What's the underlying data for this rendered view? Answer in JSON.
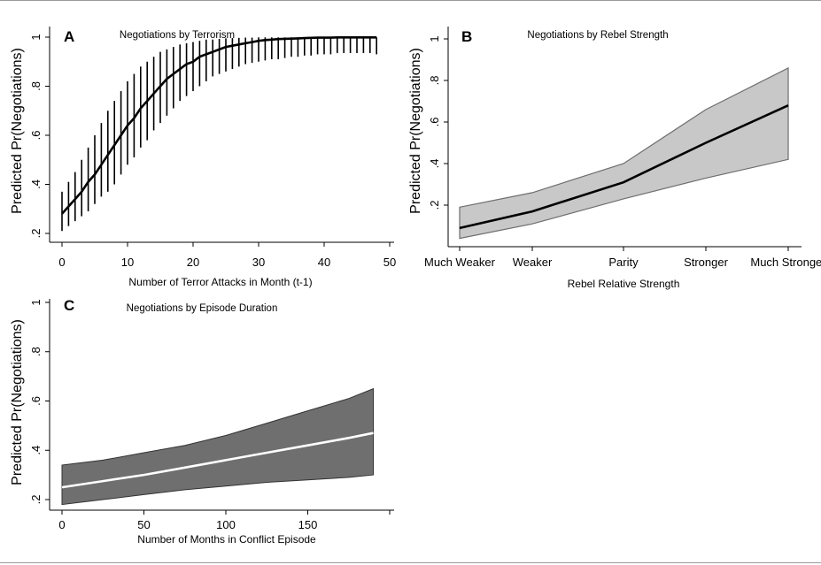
{
  "chart_data": [
    {
      "type": "line",
      "panel_label": "A",
      "title": "Negotiations by Terrorism",
      "xlabel": "Number of Terror Attacks in Month (t-1)",
      "ylabel": "Predicted Pr(Negotiations)",
      "xlim": [
        0,
        50
      ],
      "ylim": [
        0.2,
        1
      ],
      "xticks": [
        0,
        10,
        20,
        30,
        40,
        50
      ],
      "xtick_labels": [
        "0",
        "10",
        "20",
        "30",
        "40",
        "50"
      ],
      "yticks": [
        0.2,
        0.4,
        0.6,
        0.8,
        1
      ],
      "ytick_labels": [
        ".2",
        ".4",
        ".6",
        ".8",
        "1"
      ],
      "interval_style": "capped-bars",
      "colors": {
        "line": "#000000",
        "interval": "#000000"
      },
      "x": [
        0,
        1,
        2,
        3,
        4,
        5,
        6,
        7,
        8,
        9,
        10,
        11,
        12,
        13,
        14,
        15,
        16,
        17,
        18,
        19,
        20,
        21,
        22,
        23,
        24,
        25,
        26,
        27,
        28,
        29,
        30,
        31,
        32,
        33,
        34,
        35,
        36,
        37,
        38,
        39,
        40,
        41,
        42,
        43,
        44,
        45,
        46,
        47,
        48
      ],
      "y": [
        0.28,
        0.31,
        0.34,
        0.37,
        0.41,
        0.44,
        0.48,
        0.52,
        0.56,
        0.6,
        0.64,
        0.67,
        0.71,
        0.74,
        0.77,
        0.8,
        0.83,
        0.85,
        0.87,
        0.89,
        0.9,
        0.92,
        0.93,
        0.94,
        0.95,
        0.96,
        0.965,
        0.97,
        0.975,
        0.98,
        0.985,
        0.988,
        0.99,
        0.992,
        0.993,
        0.994,
        0.995,
        0.996,
        0.997,
        0.998,
        0.998,
        0.998,
        0.999,
        0.999,
        0.999,
        0.999,
        0.999,
        0.999,
        0.999
      ],
      "lower": [
        0.21,
        0.23,
        0.25,
        0.27,
        0.29,
        0.32,
        0.35,
        0.37,
        0.4,
        0.44,
        0.48,
        0.51,
        0.55,
        0.58,
        0.62,
        0.65,
        0.68,
        0.71,
        0.74,
        0.76,
        0.78,
        0.8,
        0.82,
        0.84,
        0.85,
        0.86,
        0.87,
        0.88,
        0.89,
        0.895,
        0.9,
        0.905,
        0.91,
        0.91,
        0.915,
        0.92,
        0.92,
        0.925,
        0.925,
        0.93,
        0.93,
        0.93,
        0.935,
        0.935,
        0.935,
        0.935,
        0.935,
        0.935,
        0.93
      ],
      "upper": [
        0.37,
        0.41,
        0.45,
        0.5,
        0.55,
        0.6,
        0.65,
        0.7,
        0.74,
        0.78,
        0.82,
        0.85,
        0.88,
        0.9,
        0.92,
        0.94,
        0.95,
        0.96,
        0.97,
        0.975,
        0.98,
        0.985,
        0.99,
        0.99,
        0.993,
        0.995,
        0.996,
        0.997,
        0.998,
        0.998,
        0.999,
        0.999,
        0.999,
        0.999,
        0.999,
        0.999,
        0.999,
        0.999,
        0.999,
        0.999,
        0.999,
        0.999,
        0.999,
        0.999,
        0.999,
        0.999,
        0.999,
        0.999,
        0.999
      ]
    },
    {
      "type": "line",
      "panel_label": "B",
      "title": "Negotiations by Rebel Strength",
      "xlabel": "Rebel Relative Strength",
      "ylabel": "Predicted Pr(Negotiations)",
      "categories": [
        "Much Weaker",
        "Weaker",
        "Parity",
        "Stronger",
        "Much Stronger"
      ],
      "ylim": [
        0,
        1
      ],
      "yticks": [
        0.2,
        0.4,
        0.6,
        0.8,
        1
      ],
      "ytick_labels": [
        ".2",
        ".4",
        ".6",
        ".8",
        "1"
      ],
      "interval_style": "shaded-band",
      "colors": {
        "line": "#000000",
        "band": "#c8c8c8",
        "band_edge": "#6e6e6e"
      },
      "y": [
        0.09,
        0.17,
        0.31,
        0.5,
        0.68
      ],
      "lower": [
        0.04,
        0.11,
        0.23,
        0.33,
        0.42
      ],
      "upper": [
        0.19,
        0.26,
        0.4,
        0.66,
        0.86
      ]
    },
    {
      "type": "line",
      "panel_label": "C",
      "title": "Negotiations by Episode Duration",
      "xlabel": "Number of Months in Conflict Episode",
      "ylabel": "Predicted Pr(Negotiations)",
      "xlim": [
        0,
        200
      ],
      "ylim": [
        0.2,
        1
      ],
      "xticks": [
        0,
        50,
        100,
        150,
        200
      ],
      "xtick_labels": [
        "0",
        "50",
        "100",
        "150",
        ""
      ],
      "yticks": [
        0.2,
        0.4,
        0.6,
        0.8,
        1
      ],
      "ytick_labels": [
        ".2",
        ".4",
        ".6",
        ".8",
        "1"
      ],
      "interval_style": "shaded-band",
      "colors": {
        "line": "#ffffff",
        "band": "#6f6f6f",
        "band_edge": "#333333"
      },
      "x": [
        0,
        25,
        50,
        75,
        100,
        125,
        150,
        175,
        190
      ],
      "y": [
        0.25,
        0.275,
        0.3,
        0.33,
        0.36,
        0.39,
        0.42,
        0.45,
        0.47
      ],
      "lower": [
        0.18,
        0.2,
        0.22,
        0.24,
        0.255,
        0.27,
        0.28,
        0.29,
        0.3
      ],
      "upper": [
        0.34,
        0.36,
        0.39,
        0.42,
        0.46,
        0.51,
        0.56,
        0.61,
        0.65
      ]
    }
  ]
}
